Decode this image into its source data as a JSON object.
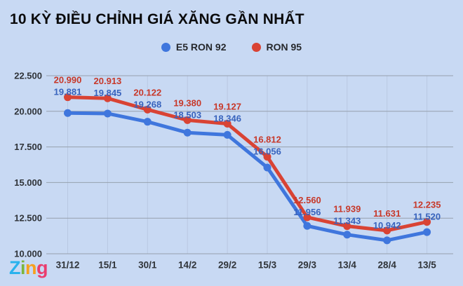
{
  "title": "10 KỲ ĐIỀU CHỈNH GIÁ XĂNG GẦN NHẤT",
  "colors": {
    "background": "#c8d9f3",
    "title": "#0b0b0c",
    "grid_horizontal": "#96a0ad",
    "grid_vertical": "#b9c8e2",
    "axis_text": "#2f3338"
  },
  "watermark": {
    "text": "Zing",
    "letters": [
      {
        "ch": "Z",
        "color": "#29b2ed"
      },
      {
        "ch": "i",
        "color": "#7cb63d"
      },
      {
        "ch": "n",
        "color": "#f7a01e"
      },
      {
        "ch": "g",
        "color": "#ea3d6e"
      }
    ]
  },
  "chart_data": {
    "type": "line",
    "title": "10 KỲ ĐIỀU CHỈNH GIÁ XĂNG GẦN NHẤT",
    "categories": [
      "31/12",
      "15/1",
      "30/1",
      "14/2",
      "29/2",
      "15/3",
      "29/3",
      "13/4",
      "28/4",
      "13/5"
    ],
    "series": [
      {
        "name": "E5 RON 92",
        "color": "#3f76dd",
        "label_color": "#3863bd",
        "values": [
          19881,
          19845,
          19268,
          18503,
          18346,
          16056,
          11956,
          11343,
          10942,
          11520
        ],
        "point_labels": [
          "19.881",
          "19.845",
          "19.268",
          "18.503",
          "18.346",
          "16.056",
          "11.956",
          "11.343",
          "10.942",
          "11.520"
        ]
      },
      {
        "name": "RON 95",
        "color": "#d94334",
        "label_color": "#c73829",
        "values": [
          20990,
          20913,
          20122,
          19380,
          19127,
          16812,
          12560,
          11939,
          11631,
          12235
        ],
        "point_labels": [
          "20.990",
          "20.913",
          "20.122",
          "19.380",
          "19.127",
          "16.812",
          "12.560",
          "11.939",
          "11.631",
          "12.235"
        ]
      }
    ],
    "ylim": [
      10000,
      22500
    ],
    "y_ticks": [
      22500,
      20000,
      17500,
      15000,
      12500,
      10000
    ],
    "y_tick_labels": [
      "22.500",
      "20.000",
      "17.500",
      "15.000",
      "12.500",
      "10.000"
    ],
    "xlabel": "",
    "ylabel": "",
    "grid": true,
    "legend_position": "top-center",
    "marker": "circle",
    "data_labels": true
  }
}
